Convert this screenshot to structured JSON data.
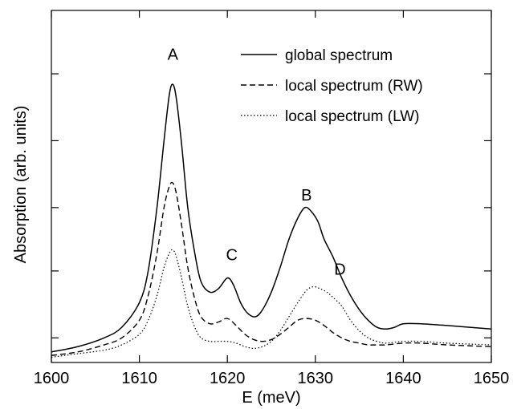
{
  "chart_data": {
    "type": "line",
    "title": "",
    "xlabel": "E (meV)",
    "ylabel": "Absorption (arb. units)",
    "xlim": [
      1600,
      1650
    ],
    "ylim": [
      0,
      1
    ],
    "x_ticks": [
      1600,
      1610,
      1620,
      1630,
      1640,
      1650
    ],
    "x_tick_labels": [
      "1600",
      "1610",
      "1620",
      "1630",
      "1640",
      "1650"
    ],
    "y_ticks": [
      0.07,
      0.26,
      0.44,
      0.63,
      0.82
    ],
    "y_tick_labels": [],
    "grid": false,
    "legend_position": "top-right",
    "annotations": [
      {
        "text": "A",
        "x": 1613.8,
        "y": 0.86
      },
      {
        "text": "B",
        "x": 1629.0,
        "y": 0.46
      },
      {
        "text": "C",
        "x": 1620.5,
        "y": 0.29
      },
      {
        "text": "D",
        "x": 1632.8,
        "y": 0.25
      }
    ],
    "series": [
      {
        "name": "global spectrum",
        "style": "solid",
        "x": [
          1600,
          1603,
          1606,
          1608,
          1610,
          1611,
          1612,
          1612.8,
          1613.4,
          1613.8,
          1614.2,
          1614.8,
          1615.5,
          1616.3,
          1617,
          1618,
          1619,
          1620,
          1620.7,
          1621.5,
          1622.3,
          1623.2,
          1624,
          1625,
          1626,
          1627,
          1628,
          1628.8,
          1629.5,
          1630.3,
          1631,
          1632,
          1633,
          1634,
          1635,
          1636,
          1637,
          1638,
          1639,
          1640,
          1642,
          1645,
          1650
        ],
        "y": [
          0.03,
          0.045,
          0.07,
          0.1,
          0.17,
          0.26,
          0.44,
          0.63,
          0.76,
          0.79,
          0.75,
          0.62,
          0.44,
          0.31,
          0.23,
          0.2,
          0.21,
          0.24,
          0.22,
          0.17,
          0.14,
          0.13,
          0.15,
          0.2,
          0.27,
          0.35,
          0.41,
          0.44,
          0.43,
          0.4,
          0.35,
          0.3,
          0.24,
          0.19,
          0.15,
          0.12,
          0.1,
          0.095,
          0.1,
          0.11,
          0.11,
          0.105,
          0.095
        ]
      },
      {
        "name": "local spectrum (RW)",
        "style": "dashed",
        "x": [
          1600,
          1603,
          1606,
          1608,
          1610,
          1611,
          1612,
          1612.8,
          1613.4,
          1613.8,
          1614.2,
          1614.8,
          1615.5,
          1616.3,
          1617,
          1618,
          1619,
          1620,
          1621,
          1622,
          1623,
          1624,
          1625,
          1626,
          1627,
          1628,
          1629,
          1630,
          1631,
          1632,
          1633,
          1634,
          1635,
          1636,
          1637,
          1638,
          1640,
          1642,
          1645,
          1650
        ],
        "y": [
          0.02,
          0.03,
          0.05,
          0.07,
          0.12,
          0.19,
          0.31,
          0.44,
          0.5,
          0.51,
          0.48,
          0.39,
          0.27,
          0.18,
          0.13,
          0.11,
          0.115,
          0.125,
          0.105,
          0.08,
          0.065,
          0.06,
          0.065,
          0.08,
          0.1,
          0.12,
          0.125,
          0.12,
          0.105,
          0.085,
          0.07,
          0.06,
          0.055,
          0.05,
          0.05,
          0.05,
          0.055,
          0.055,
          0.05,
          0.045
        ]
      },
      {
        "name": "local spectrum (LW)",
        "style": "dotted",
        "x": [
          1600,
          1603,
          1606,
          1608,
          1610,
          1611,
          1612,
          1612.8,
          1613.4,
          1613.8,
          1614.2,
          1614.8,
          1615.5,
          1616.3,
          1617,
          1618,
          1619,
          1620,
          1621,
          1622,
          1623,
          1624,
          1625,
          1626,
          1627,
          1628,
          1629,
          1629.8,
          1630.5,
          1631.3,
          1632,
          1633,
          1634,
          1635,
          1636,
          1637,
          1638,
          1640,
          1642,
          1645,
          1650
        ],
        "y": [
          0.015,
          0.025,
          0.035,
          0.05,
          0.08,
          0.12,
          0.19,
          0.27,
          0.31,
          0.32,
          0.3,
          0.24,
          0.16,
          0.1,
          0.07,
          0.06,
          0.06,
          0.06,
          0.055,
          0.045,
          0.04,
          0.045,
          0.06,
          0.09,
          0.13,
          0.17,
          0.205,
          0.215,
          0.21,
          0.2,
          0.185,
          0.16,
          0.12,
          0.09,
          0.07,
          0.06,
          0.055,
          0.06,
          0.06,
          0.055,
          0.05
        ]
      }
    ]
  }
}
